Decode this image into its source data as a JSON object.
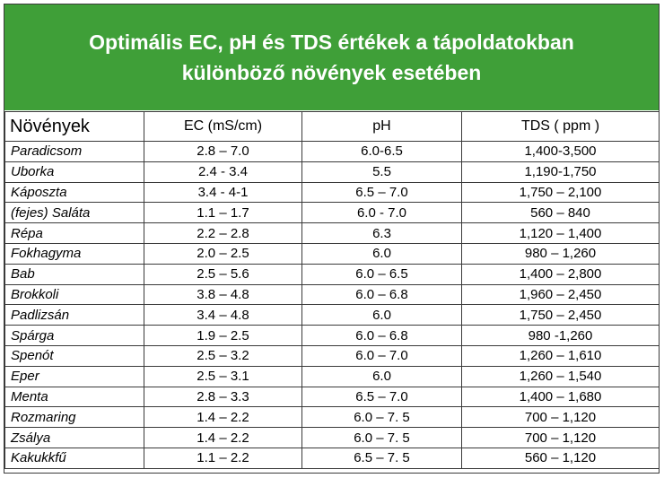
{
  "title": {
    "line1": "Optimális EC, pH és TDS értékek a tápoldatokban",
    "line2": "különböző növények esetében"
  },
  "headers": [
    "Növények",
    "EC (mS/cm)",
    "pH",
    "TDS ( ppm )"
  ],
  "rows": [
    [
      "Paradicsom",
      "2.8 – 7.0",
      "6.0-6.5",
      "1,400-3,500"
    ],
    [
      "Uborka",
      "2.4 -  3.4",
      "5.5",
      "1,190-1,750"
    ],
    [
      "Káposzta",
      "3.4 - 4-1",
      "6.5 – 7.0",
      "1,750 – 2,100"
    ],
    [
      "(fejes) Saláta",
      "1.1 – 1.7",
      "6.0 - 7.0",
      "560 – 840"
    ],
    [
      "Répa",
      "2.2 – 2.8",
      "6.3",
      "1,120 – 1,400"
    ],
    [
      "Fokhagyma",
      "2.0 – 2.5",
      "6.0",
      "980 – 1,260"
    ],
    [
      "Bab",
      "2.5 – 5.6",
      "6.0 – 6.5",
      "1,400 – 2,800"
    ],
    [
      "Brokkoli",
      "3.8 – 4.8",
      "6.0 – 6.8",
      "1,960 – 2,450"
    ],
    [
      "Padlizsán",
      "3.4 – 4.8",
      "6.0",
      "1,750 – 2,450"
    ],
    [
      "Spárga",
      "1.9 – 2.5",
      "6.0 – 6.8",
      "980 -1,260"
    ],
    [
      "Spenót",
      "2.5 – 3.2",
      "6.0 – 7.0",
      "1,260 – 1,610"
    ],
    [
      "Eper",
      "2.5 – 3.1",
      "6.0",
      "1,260 – 1,540"
    ],
    [
      "Menta",
      "2.8 – 3.3",
      "6.5 – 7.0",
      "1,400 – 1,680"
    ],
    [
      "Rozmaring",
      "1.4 – 2.2",
      "6.0 – 7. 5",
      "700 – 1,120"
    ],
    [
      "Zsálya",
      "1.4 – 2.2",
      "6.0 – 7. 5",
      "700 – 1,120"
    ],
    [
      "Kakukkfű",
      "1.1 – 2.2",
      "6.5 – 7. 5",
      "560 – 1,120"
    ]
  ],
  "colors": {
    "banner": "#3f9f38",
    "banner_text": "#ffffff",
    "border": "#3a3a3a"
  }
}
